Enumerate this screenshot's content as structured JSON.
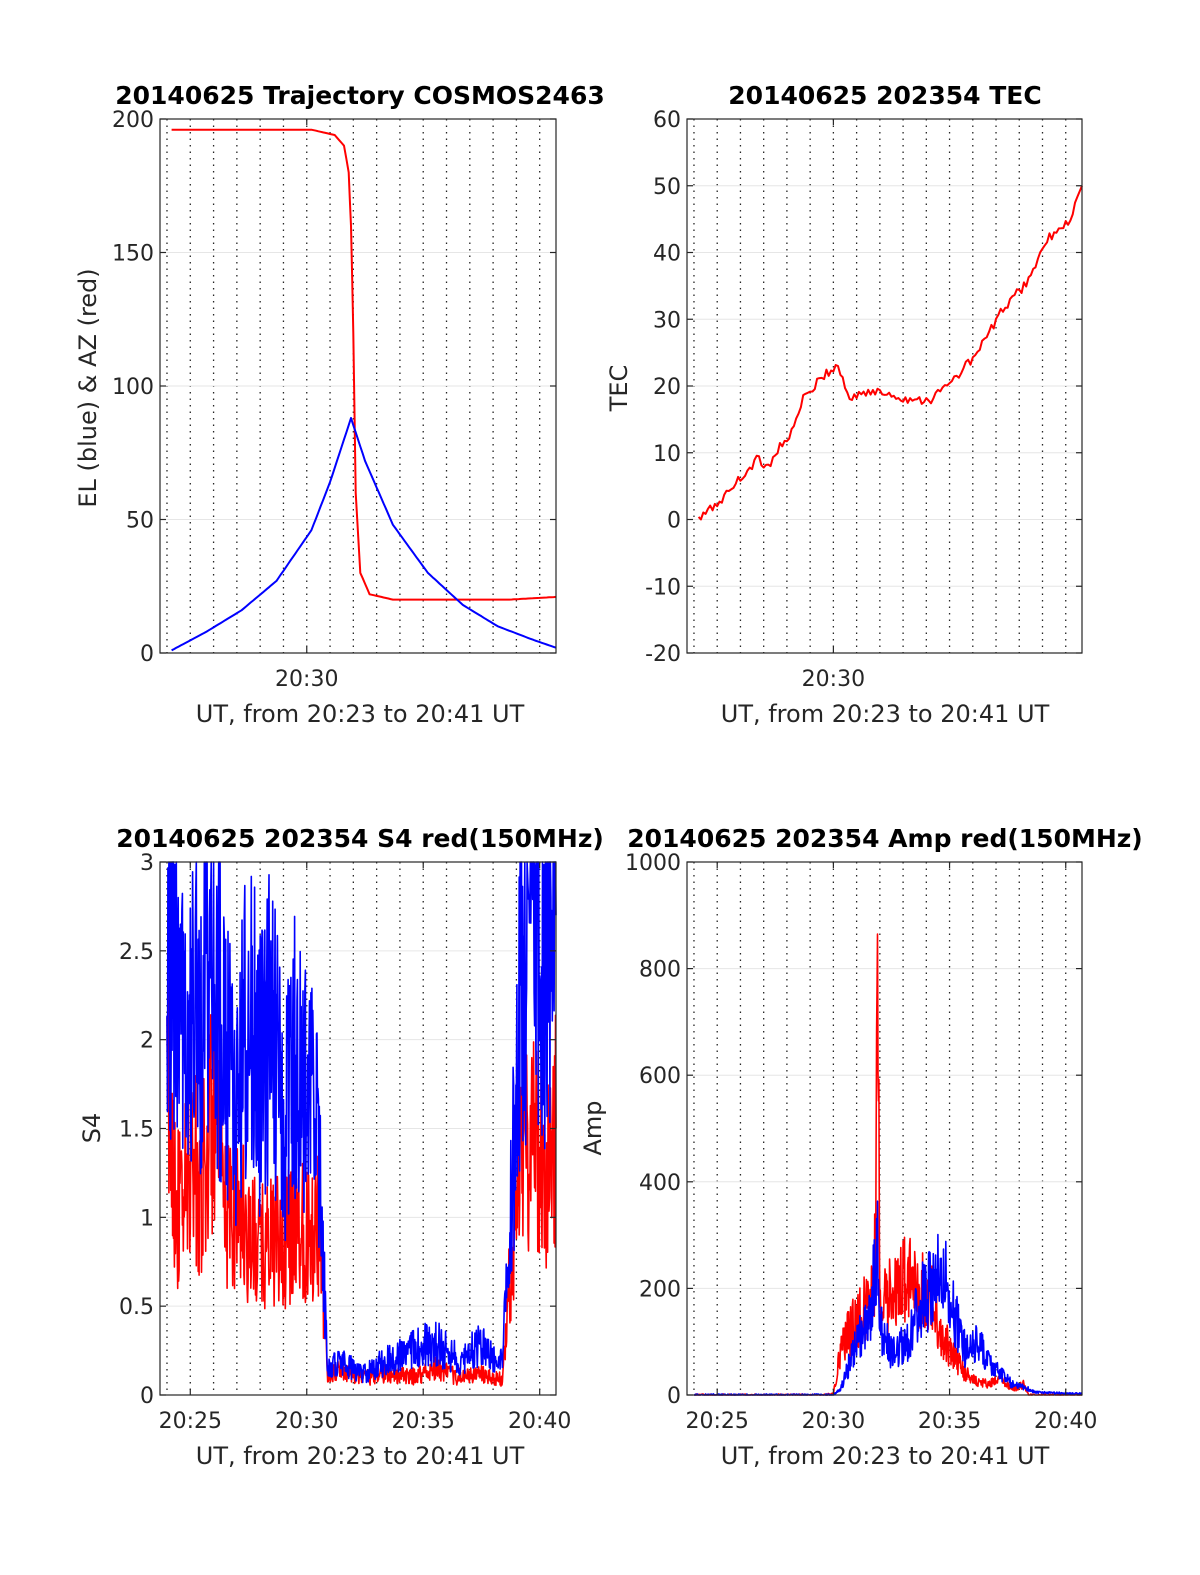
{
  "colors": {
    "red": "#ff0000",
    "blue": "#0000ff",
    "axis": "#262626",
    "grid": "#262626"
  },
  "chart_data": [
    {
      "id": "trajectory",
      "type": "line",
      "title": "20140625 Trajectory COSMOS2463",
      "xlabel": "UT, from 20:23 to 20:41 UT",
      "ylabel": "EL (blue) & AZ (red)",
      "xlim": [
        "20:23:42",
        "20:40:42"
      ],
      "ylim": [
        0,
        200
      ],
      "yticks": [
        0,
        50,
        100,
        150,
        200
      ],
      "xticks": [
        "20:30"
      ],
      "grid": true,
      "series": [
        {
          "color": "red",
          "x": [
            "20:24:12",
            "20:27:12",
            "20:30:12",
            "20:31:12",
            "20:31:36",
            "20:31:48",
            "20:31:54",
            "20:32:00",
            "20:32:06",
            "20:32:18",
            "20:32:42",
            "20:33:42",
            "20:35:42",
            "20:38:42",
            "20:40:42"
          ],
          "y": [
            196,
            196,
            196,
            194,
            190,
            180,
            160,
            120,
            60,
            30,
            22,
            20,
            20,
            20,
            21
          ]
        },
        {
          "color": "blue",
          "x": [
            "20:24:12",
            "20:25:42",
            "20:27:12",
            "20:28:42",
            "20:30:12",
            "20:31:00",
            "20:31:36",
            "20:31:54",
            "20:32:30",
            "20:33:42",
            "20:35:12",
            "20:36:42",
            "20:38:12",
            "20:39:42",
            "20:40:42"
          ],
          "y": [
            1,
            8,
            16,
            27,
            46,
            64,
            80,
            88,
            72,
            48,
            30,
            18,
            10,
            5,
            2
          ]
        }
      ]
    },
    {
      "id": "tec",
      "type": "line",
      "title": "20140625 202354 TEC",
      "xlabel": "UT, from 20:23 to 20:41 UT",
      "ylabel": "TEC",
      "xlim": [
        "20:23:42",
        "20:40:42"
      ],
      "ylim": [
        -20,
        60
      ],
      "yticks": [
        -20,
        -10,
        0,
        10,
        20,
        30,
        40,
        50,
        60
      ],
      "xticks": [
        "20:30"
      ],
      "grid": true,
      "series": [
        {
          "color": "red",
          "x": [
            "20:24:12",
            "20:25:12",
            "20:26:12",
            "20:26:42",
            "20:27:12",
            "20:27:42",
            "20:28:12",
            "20:28:42",
            "20:29:12",
            "20:29:42",
            "20:30:12",
            "20:30:30",
            "20:30:42",
            "20:31:12",
            "20:32:12",
            "20:33:12",
            "20:34:12",
            "20:35:12",
            "20:36:12",
            "20:37:12",
            "20:37:42",
            "20:38:12",
            "20:38:42",
            "20:39:12",
            "20:39:42",
            "20:40:12",
            "20:40:42"
          ],
          "y": [
            0,
            3,
            7,
            9,
            8,
            11,
            13,
            18,
            20,
            22,
            23,
            20,
            18,
            19,
            19,
            18,
            18,
            21,
            25,
            31,
            33,
            35,
            38,
            42,
            43,
            45,
            50
          ]
        }
      ]
    },
    {
      "id": "s4",
      "type": "line",
      "title": "20140625 202354 S4 red(150MHz)",
      "xlabel": "UT, from 20:23 to 20:41 UT",
      "ylabel": "S4",
      "xlim": [
        "20:23:42",
        "20:40:42"
      ],
      "ylim": [
        0,
        3
      ],
      "yticks": [
        0,
        0.5,
        1,
        1.5,
        2,
        2.5,
        3
      ],
      "xticks": [
        "20:25",
        "20:30",
        "20:35",
        "20:40"
      ],
      "grid": true,
      "series": [
        {
          "color": "red",
          "x": [
            "20:24:00",
            "20:24:30",
            "20:25:00",
            "20:25:30",
            "20:26:00",
            "20:26:30",
            "20:27:00",
            "20:27:30",
            "20:28:00",
            "20:28:30",
            "20:29:00",
            "20:29:30",
            "20:30:00",
            "20:30:30",
            "20:30:54",
            "20:31:30",
            "20:32:00",
            "20:32:30",
            "20:33:30",
            "20:34:30",
            "20:35:30",
            "20:36:30",
            "20:37:30",
            "20:38:00",
            "20:38:24",
            "20:38:42",
            "20:39:12",
            "20:39:42",
            "20:40:12",
            "20:40:42"
          ],
          "y": [
            1.8,
            1.0,
            1.3,
            1.2,
            1.6,
            1.0,
            1.1,
            0.9,
            0.8,
            0.9,
            0.8,
            1.0,
            0.9,
            1.0,
            0.1,
            0.15,
            0.12,
            0.1,
            0.12,
            0.1,
            0.15,
            0.1,
            0.12,
            0.08,
            0.1,
            0.6,
            1.4,
            1.5,
            1.2,
            1.5
          ]
        },
        {
          "color": "blue",
          "x": [
            "20:24:00",
            "20:24:30",
            "20:25:00",
            "20:25:30",
            "20:26:00",
            "20:26:30",
            "20:27:00",
            "20:27:30",
            "20:28:00",
            "20:28:30",
            "20:29:00",
            "20:29:30",
            "20:30:00",
            "20:30:30",
            "20:30:54",
            "20:31:30",
            "20:32:00",
            "20:32:30",
            "20:33:30",
            "20:34:30",
            "20:35:30",
            "20:36:30",
            "20:37:30",
            "20:38:00",
            "20:38:24",
            "20:38:42",
            "20:39:12",
            "20:39:42",
            "20:40:12",
            "20:40:42"
          ],
          "y": [
            2.6,
            2.4,
            2.0,
            2.2,
            2.5,
            1.9,
            1.6,
            2.2,
            1.8,
            2.1,
            1.5,
            1.9,
            1.7,
            1.5,
            0.15,
            0.18,
            0.15,
            0.12,
            0.2,
            0.25,
            0.3,
            0.2,
            0.28,
            0.2,
            0.25,
            0.8,
            2.4,
            2.6,
            2.5,
            2.7
          ]
        }
      ]
    },
    {
      "id": "amp",
      "type": "line",
      "title": "20140625 202354 Amp red(150MHz)",
      "xlabel": "UT, from 20:23 to 20:41 UT",
      "ylabel": "Amp",
      "xlim": [
        "20:23:42",
        "20:40:42"
      ],
      "ylim": [
        0,
        1000
      ],
      "yticks": [
        0,
        200,
        400,
        600,
        800,
        1000
      ],
      "xticks": [
        "20:25",
        "20:30",
        "20:35",
        "20:40"
      ],
      "grid": true,
      "series": [
        {
          "color": "red",
          "x": [
            "20:24:00",
            "20:29:30",
            "20:30:00",
            "20:30:18",
            "20:30:42",
            "20:31:12",
            "20:31:36",
            "20:31:48",
            "20:31:54",
            "20:32:00",
            "20:32:12",
            "20:32:42",
            "20:33:12",
            "20:33:42",
            "20:34:12",
            "20:34:42",
            "20:35:12",
            "20:35:42",
            "20:36:12",
            "20:36:42",
            "20:37:12",
            "20:37:42",
            "20:38:12",
            "20:38:24",
            "20:40:42"
          ],
          "y": [
            0,
            0,
            2,
            80,
            120,
            150,
            180,
            250,
            890,
            200,
            170,
            200,
            220,
            200,
            180,
            110,
            70,
            40,
            25,
            20,
            30,
            10,
            20,
            0,
            0
          ]
        },
        {
          "color": "blue",
          "x": [
            "20:24:00",
            "20:30:00",
            "20:30:18",
            "20:30:42",
            "20:31:12",
            "20:31:36",
            "20:31:54",
            "20:32:00",
            "20:32:30",
            "20:33:12",
            "20:33:42",
            "20:34:12",
            "20:34:42",
            "20:35:12",
            "20:35:42",
            "20:36:12",
            "20:36:42",
            "20:37:12",
            "20:37:42",
            "20:38:12",
            "20:38:42",
            "20:40:42"
          ],
          "y": [
            0,
            0,
            10,
            60,
            120,
            140,
            300,
            130,
            80,
            100,
            170,
            200,
            230,
            150,
            80,
            100,
            60,
            40,
            20,
            15,
            5,
            2
          ]
        }
      ]
    }
  ]
}
